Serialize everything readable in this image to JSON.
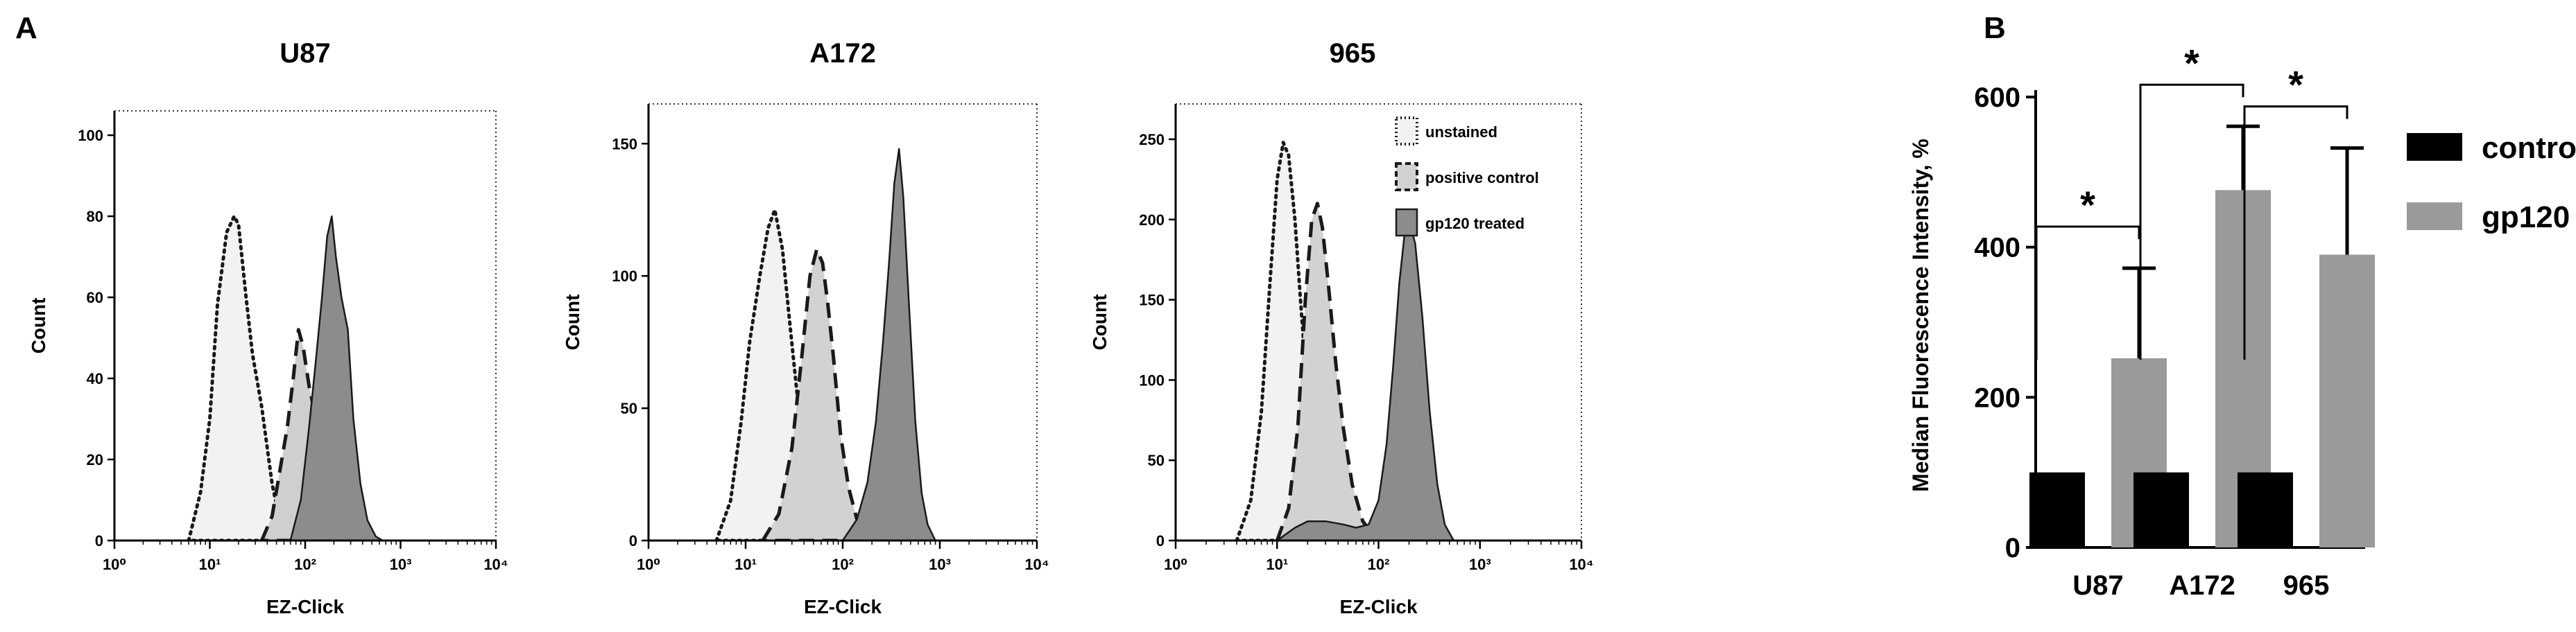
{
  "panel_a_label": "A",
  "panel_b_label": "B",
  "chart_data": [
    {
      "type": "area",
      "title": "U87",
      "xlabel": "EZ-Click",
      "ylabel": "Count",
      "x_scale": "log",
      "xlim": [
        1,
        10000
      ],
      "ylim": [
        0,
        106
      ],
      "x_tick_labels": [
        "10⁰",
        "10¹",
        "10²",
        "10³",
        "10⁴"
      ],
      "y_ticks": [
        0,
        20,
        40,
        60,
        80,
        100
      ],
      "series": [
        {
          "name": "unstained",
          "fill": "#f2f2f2",
          "stroke": "dotted",
          "x": [
            6,
            8,
            10,
            12,
            15,
            18,
            20,
            24,
            28,
            35,
            45,
            55,
            70
          ],
          "y": [
            0,
            12,
            30,
            58,
            76,
            80,
            78,
            60,
            46,
            33,
            14,
            4,
            0
          ]
        },
        {
          "name": "positive control",
          "fill": "#cfcfcf",
          "stroke": "dashed",
          "x": [
            35,
            45,
            55,
            65,
            75,
            85,
            95,
            110,
            130,
            150,
            170,
            190,
            220,
            260,
            300,
            350,
            420
          ],
          "y": [
            0,
            6,
            18,
            28,
            40,
            52,
            48,
            38,
            30,
            20,
            25,
            30,
            24,
            12,
            5,
            2,
            0
          ]
        },
        {
          "name": "gp120 treated",
          "fill": "#8c8c8c",
          "stroke": "solid",
          "x": [
            70,
            90,
            110,
            130,
            150,
            170,
            190,
            210,
            240,
            280,
            320,
            380,
            450,
            550,
            650
          ],
          "y": [
            0,
            10,
            28,
            45,
            60,
            75,
            80,
            70,
            60,
            52,
            30,
            14,
            5,
            1,
            0
          ]
        }
      ]
    },
    {
      "type": "area",
      "title": "A172",
      "xlabel": "EZ-Click",
      "ylabel": "Count",
      "x_scale": "log",
      "xlim": [
        1,
        10000
      ],
      "ylim": [
        0,
        165
      ],
      "x_tick_labels": [
        "10⁰",
        "10¹",
        "10²",
        "10³",
        "10⁴"
      ],
      "y_ticks": [
        0,
        50,
        100,
        150
      ],
      "series": [
        {
          "name": "unstained",
          "fill": "#f2f2f2",
          "stroke": "dotted",
          "x": [
            5,
            7,
            9,
            11,
            14,
            17,
            20,
            24,
            28,
            34,
            40,
            48,
            58,
            70,
            80
          ],
          "y": [
            0,
            15,
            45,
            75,
            100,
            118,
            125,
            110,
            85,
            55,
            30,
            15,
            6,
            2,
            0
          ]
        },
        {
          "name": "positive control",
          "fill": "#d2d2d2",
          "stroke": "dashed",
          "x": [
            15,
            22,
            30,
            38,
            46,
            54,
            62,
            70,
            80,
            95,
            115,
            140,
            170,
            210
          ],
          "y": [
            0,
            10,
            35,
            70,
            100,
            110,
            105,
            90,
            70,
            40,
            20,
            8,
            3,
            0
          ]
        },
        {
          "name": "gp120 treated",
          "fill": "#8c8c8c",
          "stroke": "solid",
          "x": [
            100,
            140,
            180,
            220,
            260,
            300,
            340,
            380,
            420,
            480,
            560,
            650,
            750,
            900
          ],
          "y": [
            0,
            8,
            22,
            45,
            75,
            105,
            135,
            148,
            130,
            90,
            45,
            18,
            6,
            0
          ]
        }
      ]
    },
    {
      "type": "area",
      "title": "965",
      "xlabel": "EZ-Click",
      "ylabel": "Count",
      "x_scale": "log",
      "xlim": [
        1,
        10000
      ],
      "ylim": [
        0,
        272
      ],
      "x_tick_labels": [
        "10⁰",
        "10¹",
        "10²",
        "10³",
        "10⁴"
      ],
      "y_ticks": [
        0,
        50,
        100,
        150,
        200,
        250
      ],
      "series": [
        {
          "name": "unstained",
          "fill": "#f2f2f2",
          "stroke": "dotted",
          "x": [
            4,
            5.5,
            7,
            8.5,
            10,
            11.5,
            13,
            15,
            17,
            20,
            24,
            28,
            34,
            40
          ],
          "y": [
            0,
            25,
            80,
            160,
            225,
            248,
            240,
            200,
            150,
            90,
            40,
            15,
            4,
            0
          ]
        },
        {
          "name": "positive control",
          "fill": "#d2d2d2",
          "stroke": "dashed",
          "x": [
            10,
            13,
            16,
            19,
            22,
            25,
            28,
            32,
            38,
            45,
            55,
            70,
            90,
            110
          ],
          "y": [
            0,
            20,
            70,
            150,
            200,
            210,
            195,
            160,
            110,
            70,
            35,
            12,
            3,
            0
          ]
        },
        {
          "name": "gp120 treated",
          "fill": "#8c8c8c",
          "stroke": "solid",
          "x": [
            10,
            15,
            20,
            30,
            45,
            60,
            80,
            100,
            120,
            140,
            160,
            180,
            200,
            230,
            270,
            320,
            380,
            450,
            550
          ],
          "y": [
            0,
            8,
            12,
            12,
            10,
            8,
            10,
            25,
            60,
            110,
            160,
            190,
            200,
            185,
            140,
            80,
            35,
            10,
            0
          ]
        }
      ]
    },
    {
      "type": "bar",
      "ylabel": "Median Fluorescence Intensity, %",
      "ylim": [
        0,
        600
      ],
      "y_ticks": [
        0,
        200,
        400,
        600
      ],
      "categories": [
        "U87",
        "A172",
        "965"
      ],
      "series": [
        {
          "name": "control",
          "color": "#000000",
          "values": [
            100,
            100,
            100
          ],
          "errors": [
            0,
            0,
            0
          ]
        },
        {
          "name": "gp120",
          "color": "#9a9a9a",
          "values": [
            252,
            476,
            390
          ],
          "errors": [
            120,
            85,
            142
          ]
        }
      ],
      "significance": [
        "*",
        "*",
        "*"
      ],
      "legend": [
        "control",
        "gp120"
      ]
    }
  ]
}
